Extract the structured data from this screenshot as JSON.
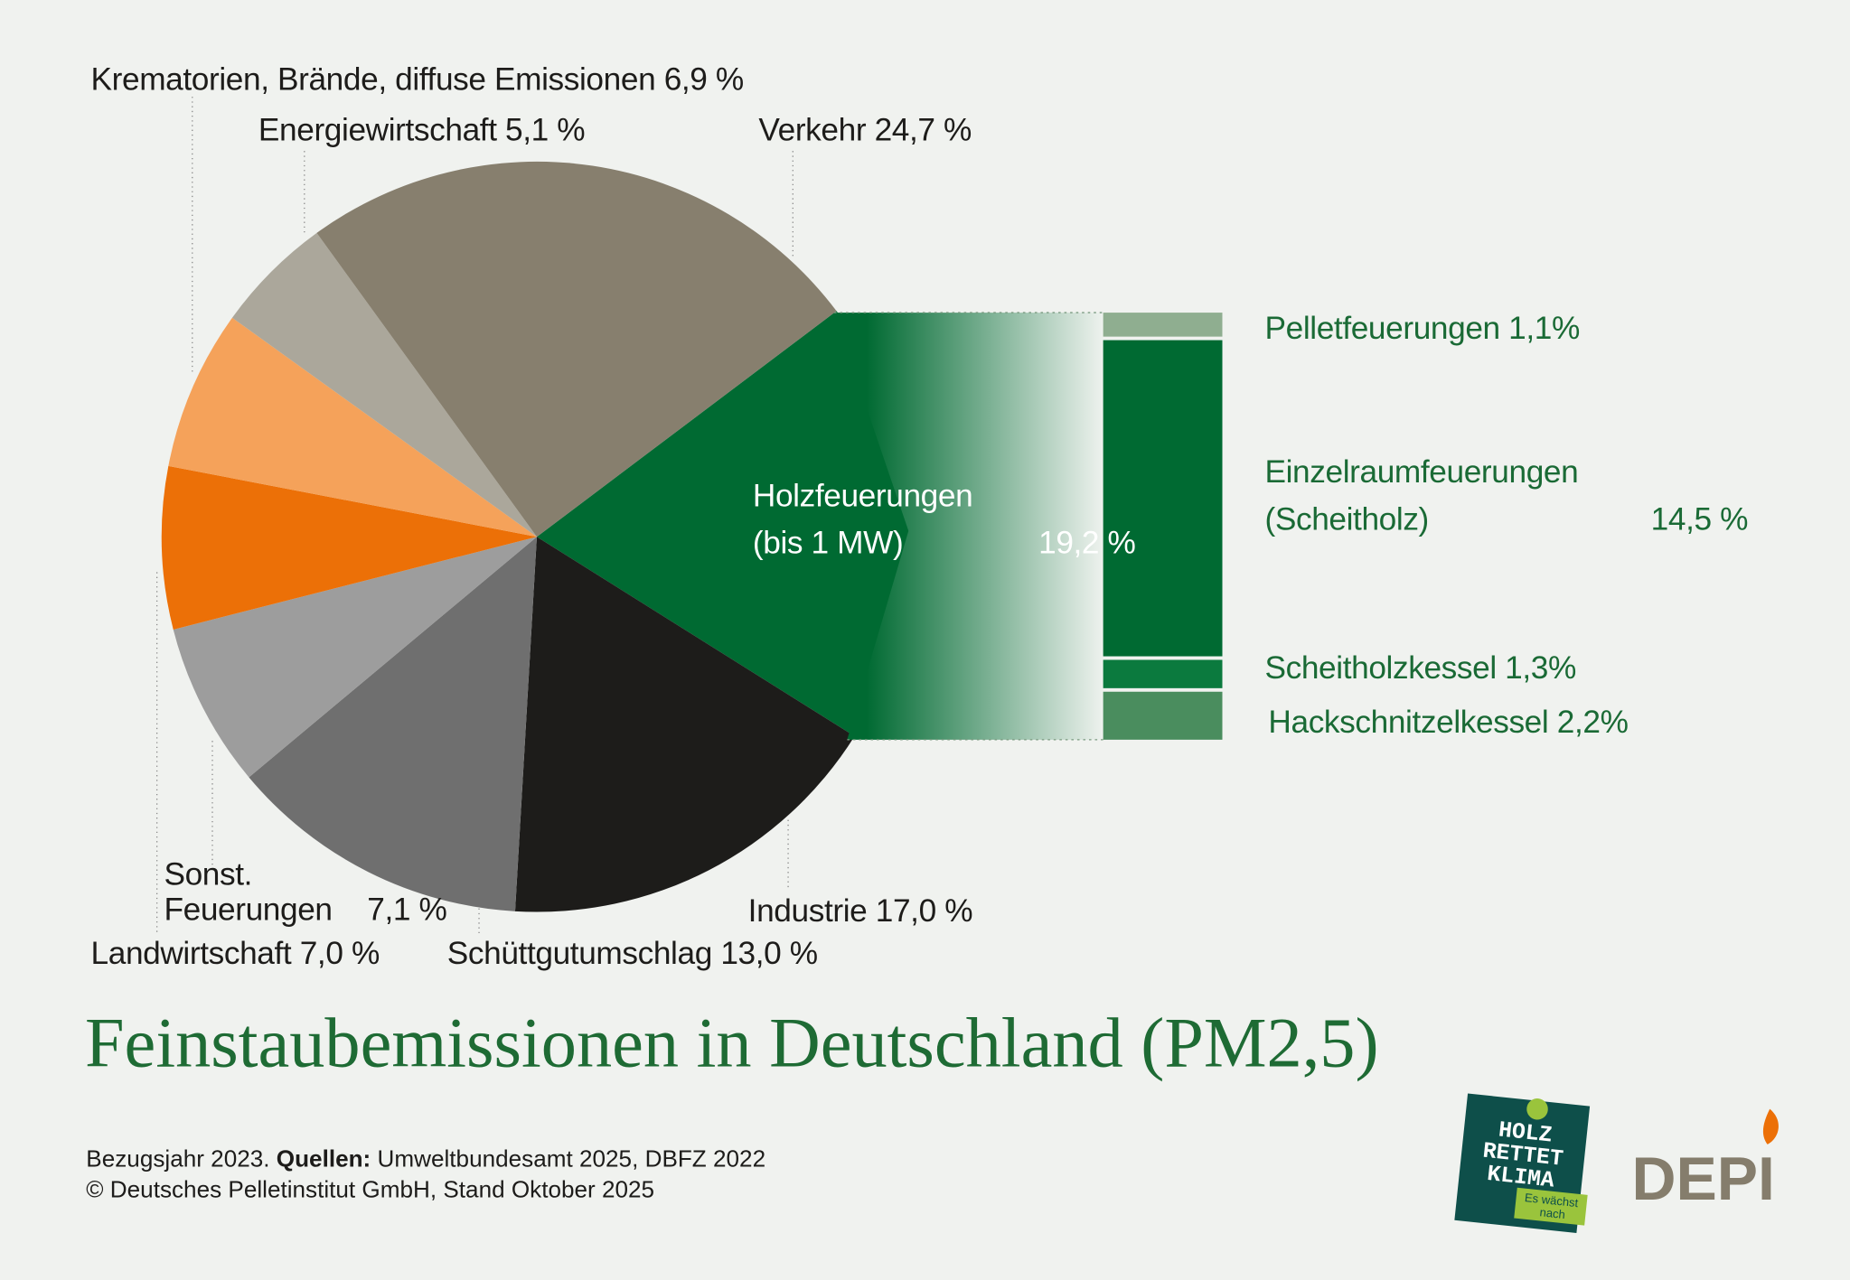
{
  "chart_data": [
    {
      "type": "pie",
      "title": "Feinstaubemissionen in Deutschland (PM2,5)",
      "categories": [
        "Holzfeuerungen (bis 1 MW)",
        "Industrie",
        "Schüttgutumschlag",
        "Sonst. Feuerungen",
        "Landwirtschaft",
        "Krematorien, Brände, diffuse Emissionen",
        "Energiewirtschaft",
        "Verkehr"
      ],
      "values": [
        19.2,
        17.0,
        13.0,
        7.1,
        7.0,
        6.9,
        5.1,
        24.7
      ],
      "value_labels": [
        "19,2 %",
        "17,0 %",
        "13,0 %",
        "7,1 %",
        "7,0 %",
        "6,9 %",
        "5,1 %",
        "24,7 %"
      ],
      "colors": [
        "#006a32",
        "#1d1c1a",
        "#6f6f6f",
        "#9d9d9d",
        "#ec7007",
        "#f5a25a",
        "#aba79b",
        "#877f6e"
      ]
    },
    {
      "type": "stacked-column",
      "categories": [
        "Pelletfeuerungen",
        "Einzelraumfeuerungen (Scheitholz)",
        "Scheitholzkessel",
        "Hackschnitzelkessel"
      ],
      "values": [
        1.1,
        14.5,
        1.3,
        2.2
      ],
      "value_labels": [
        "1,1%",
        "14,5 %",
        "1,3%",
        "2,2%"
      ],
      "colors": [
        "#8fae90",
        "#006a32",
        "#0b7a3e",
        "#4a8d5e"
      ]
    }
  ],
  "footer": {
    "reference": "Bezugsjahr 2023.",
    "sources_label": "Quellen:",
    "sources": "Umweltbundesamt 2025, DBFZ 2022",
    "copyright": "© Deutsches Pelletinstitut GmbH, Stand Oktober 2025"
  },
  "logos": {
    "campaign": [
      "HOLZ",
      "RETTET",
      "KLIMA"
    ],
    "campaign_tag": [
      "Es wächst",
      "nach"
    ],
    "brand": "DEPI"
  }
}
